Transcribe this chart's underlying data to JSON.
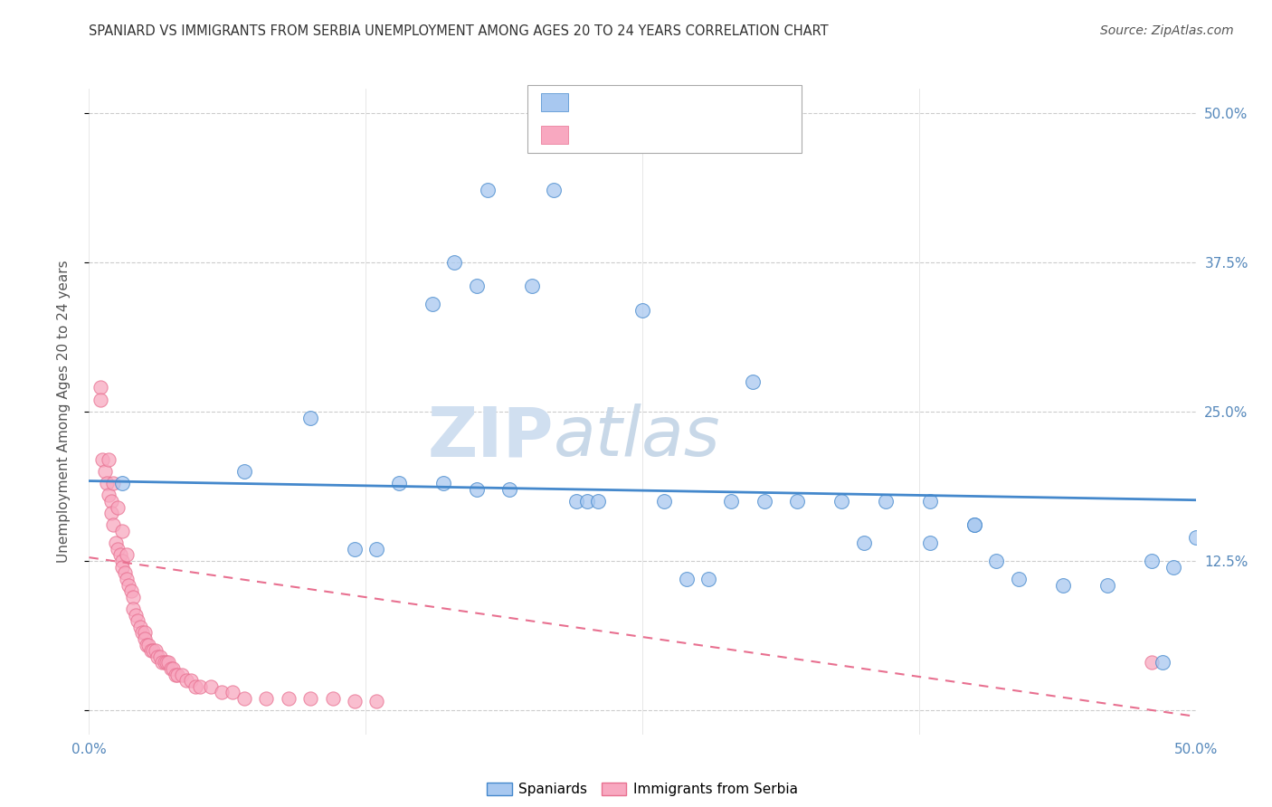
{
  "title": "SPANIARD VS IMMIGRANTS FROM SERBIA UNEMPLOYMENT AMONG AGES 20 TO 24 YEARS CORRELATION CHART",
  "source": "Source: ZipAtlas.com",
  "ylabel": "Unemployment Among Ages 20 to 24 years",
  "xlim": [
    0.0,
    0.5
  ],
  "ylim": [
    -0.02,
    0.52
  ],
  "xticks": [
    0.0,
    0.125,
    0.25,
    0.375,
    0.5
  ],
  "xticklabels": [
    "0.0%",
    "",
    "",
    "",
    "50.0%"
  ],
  "yticks": [
    0.0,
    0.125,
    0.25,
    0.375,
    0.5
  ],
  "yticklabels_right": [
    "",
    "12.5%",
    "25.0%",
    "37.5%",
    "50.0%"
  ],
  "spaniards_color": "#a8c8f0",
  "immigrants_color": "#f8a8c0",
  "spaniards_line_color": "#4488cc",
  "immigrants_line_color": "#e87090",
  "background_color": "#ffffff",
  "spaniards_x": [
    0.015,
    0.07,
    0.18,
    0.21,
    0.165,
    0.175,
    0.155,
    0.2,
    0.25,
    0.3,
    0.1,
    0.14,
    0.16,
    0.175,
    0.19,
    0.22,
    0.225,
    0.23,
    0.26,
    0.29,
    0.305,
    0.32,
    0.34,
    0.36,
    0.38,
    0.4,
    0.41,
    0.42,
    0.44,
    0.46,
    0.48,
    0.49,
    0.5,
    0.35,
    0.38,
    0.4,
    0.12,
    0.13,
    0.27,
    0.28,
    0.485
  ],
  "spaniards_y": [
    0.19,
    0.2,
    0.435,
    0.435,
    0.375,
    0.355,
    0.34,
    0.355,
    0.335,
    0.275,
    0.245,
    0.19,
    0.19,
    0.185,
    0.185,
    0.175,
    0.175,
    0.175,
    0.175,
    0.175,
    0.175,
    0.175,
    0.175,
    0.175,
    0.175,
    0.155,
    0.125,
    0.11,
    0.105,
    0.105,
    0.125,
    0.12,
    0.145,
    0.14,
    0.14,
    0.155,
    0.135,
    0.135,
    0.11,
    0.11,
    0.04
  ],
  "immigrants_x": [
    0.005,
    0.005,
    0.006,
    0.007,
    0.008,
    0.009,
    0.01,
    0.01,
    0.011,
    0.012,
    0.013,
    0.014,
    0.015,
    0.015,
    0.016,
    0.017,
    0.018,
    0.019,
    0.02,
    0.02,
    0.021,
    0.022,
    0.023,
    0.024,
    0.025,
    0.025,
    0.026,
    0.027,
    0.028,
    0.029,
    0.03,
    0.031,
    0.032,
    0.033,
    0.034,
    0.035,
    0.036,
    0.037,
    0.038,
    0.039,
    0.04,
    0.042,
    0.044,
    0.046,
    0.048,
    0.05,
    0.055,
    0.06,
    0.065,
    0.07,
    0.08,
    0.09,
    0.1,
    0.11,
    0.12,
    0.13,
    0.009,
    0.011,
    0.013,
    0.015,
    0.017,
    0.48
  ],
  "immigrants_y": [
    0.27,
    0.26,
    0.21,
    0.2,
    0.19,
    0.18,
    0.175,
    0.165,
    0.155,
    0.14,
    0.135,
    0.13,
    0.125,
    0.12,
    0.115,
    0.11,
    0.105,
    0.1,
    0.095,
    0.085,
    0.08,
    0.075,
    0.07,
    0.065,
    0.065,
    0.06,
    0.055,
    0.055,
    0.05,
    0.05,
    0.05,
    0.045,
    0.045,
    0.04,
    0.04,
    0.04,
    0.04,
    0.035,
    0.035,
    0.03,
    0.03,
    0.03,
    0.025,
    0.025,
    0.02,
    0.02,
    0.02,
    0.015,
    0.015,
    0.01,
    0.01,
    0.01,
    0.01,
    0.01,
    0.008,
    0.008,
    0.21,
    0.19,
    0.17,
    0.15,
    0.13,
    0.04
  ]
}
